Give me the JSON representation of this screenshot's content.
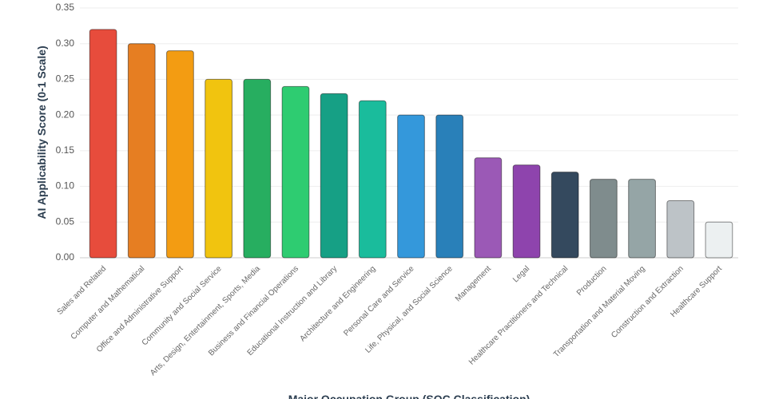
{
  "chart_data": {
    "type": "bar",
    "x_label": "Major Occupation Group (SOC Classification)",
    "y_label": "AI Applicability Score (0-1 Scale)",
    "categories": [
      "Sales and Related",
      "Computer and Mathematical",
      "Office and Administrative Support",
      "Community and Social Service",
      "Arts, Design, Entertainment, Sports, Media",
      "Business and Financial Operations",
      "Educational Instruction and Library",
      "Architecture and Engineering",
      "Personal Care and Service",
      "Life, Physical, and Social Science",
      "Management",
      "Legal",
      "Healthcare Practitioners and Technical",
      "Production",
      "Transportation and Material Moving",
      "Construction and Extraction",
      "Healthcare Support"
    ],
    "values": [
      0.32,
      0.3,
      0.29,
      0.25,
      0.25,
      0.24,
      0.23,
      0.22,
      0.2,
      0.2,
      0.14,
      0.13,
      0.12,
      0.11,
      0.11,
      0.08,
      0.05
    ],
    "colors": [
      "#e74c3c",
      "#e67e22",
      "#f39c12",
      "#f1c40f",
      "#27ae60",
      "#2ecc71",
      "#16a085",
      "#1abc9c",
      "#3498db",
      "#2980b9",
      "#9b59b6",
      "#8e44ad",
      "#34495e",
      "#7f8c8d",
      "#95a5a6",
      "#bdc3c7",
      "#ecf0f1"
    ],
    "ylim": [
      0,
      0.35
    ],
    "yticks": [
      {
        "value": 0,
        "label": "0.00"
      },
      0.05,
      {
        "value": 0.1,
        "label": "0.10"
      },
      0.15,
      {
        "value": 0.2,
        "label": "0.20"
      },
      0.25,
      {
        "value": 0.3,
        "label": "0.30"
      },
      0.35
    ],
    "grid": true
  }
}
